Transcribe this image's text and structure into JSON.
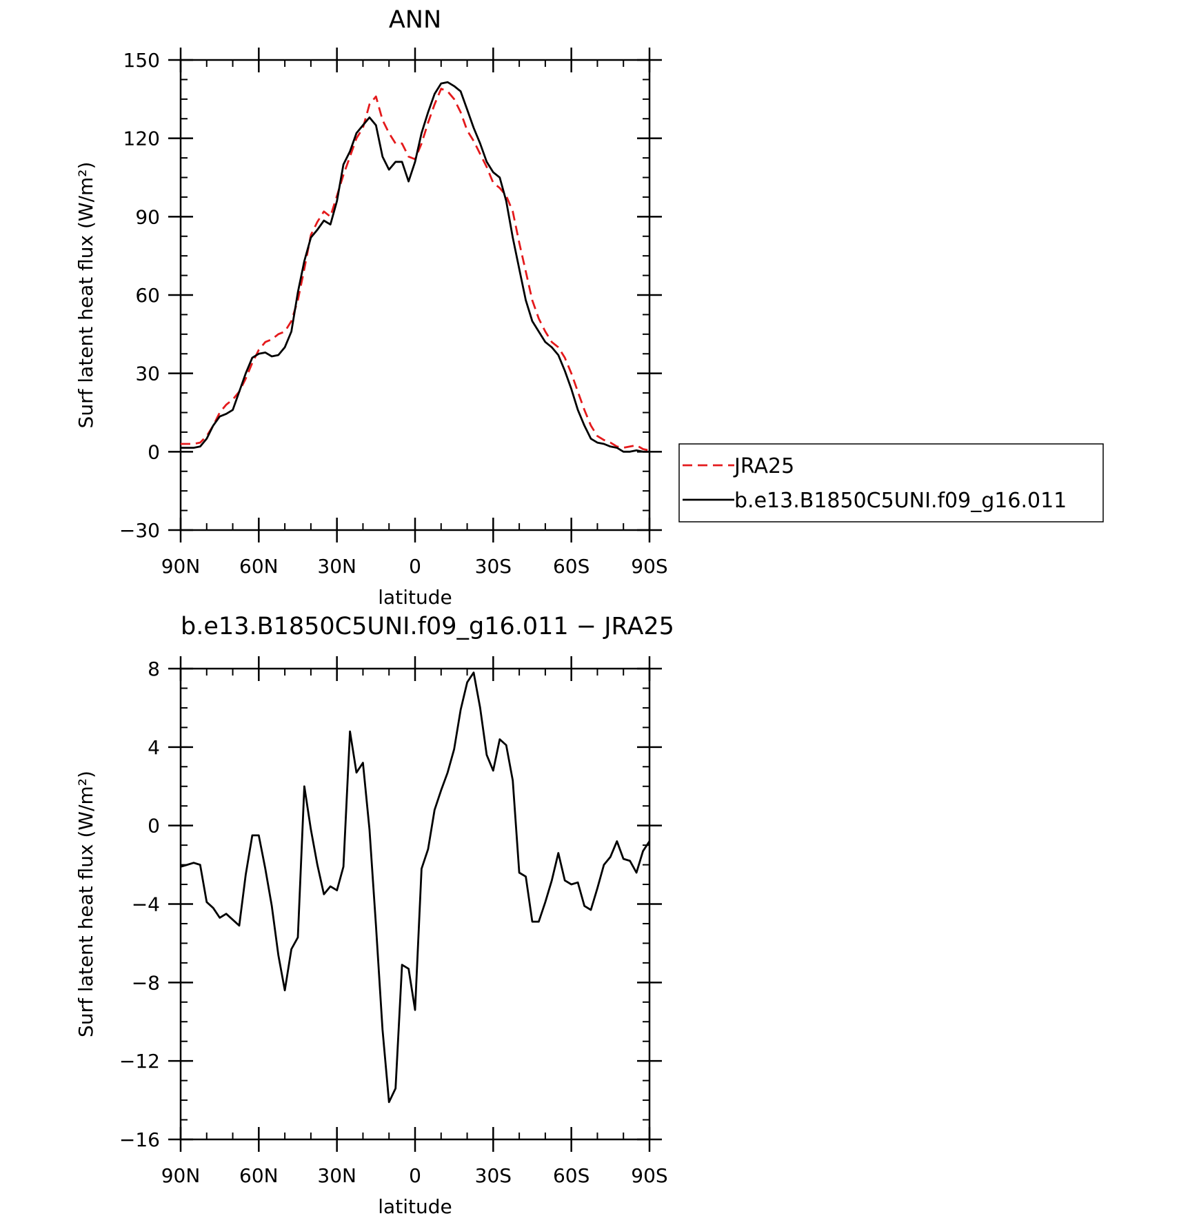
{
  "chart_data": [
    {
      "type": "line",
      "title": "ANN",
      "xlabel": "latitude",
      "ylabel": "Surf latent heat flux (W/m²)",
      "xlim": [
        -90,
        90
      ],
      "ylim": [
        -30,
        150
      ],
      "xtick_values": [
        -90,
        -60,
        -30,
        0,
        30,
        60,
        90
      ],
      "xtick_labels": [
        "90N",
        "60N",
        "30N",
        "0",
        "30S",
        "60S",
        "90S"
      ],
      "ytick_values": [
        -30,
        0,
        30,
        60,
        90,
        120,
        150
      ],
      "ytick_labels": [
        "−30",
        "0",
        "30",
        "60",
        "90",
        "120",
        "150"
      ],
      "legend_position": "right",
      "series": [
        {
          "name": "JRA25",
          "color": "#e41a1c",
          "dash": "dashed",
          "x": [
            -90,
            -87.5,
            -85,
            -82.5,
            -80,
            -77.5,
            -75,
            -72.5,
            -70,
            -67.5,
            -65,
            -62.5,
            -60,
            -57.5,
            -55,
            -52.5,
            -50,
            -47.5,
            -45,
            -42.5,
            -40,
            -37.5,
            -35,
            -32.5,
            -30,
            -27.5,
            -25,
            -22.5,
            -20,
            -17.5,
            -15,
            -12.5,
            -10,
            -7.5,
            -5,
            -2.5,
            0,
            2.5,
            5,
            7.5,
            10,
            12.5,
            15,
            17.5,
            20,
            22.5,
            25,
            27.5,
            30,
            32.5,
            35,
            37.5,
            40,
            42.5,
            45,
            47.5,
            50,
            52.5,
            55,
            57.5,
            60,
            62.5,
            65,
            67.5,
            70,
            72.5,
            75,
            77.5,
            80,
            82.5,
            85,
            87.5,
            90
          ],
          "y": [
            3,
            3,
            3,
            3.5,
            6,
            10,
            15,
            18,
            20,
            23,
            28,
            34,
            39,
            42,
            43,
            45,
            46,
            50,
            58,
            70,
            83,
            88,
            92,
            90,
            98,
            106,
            113,
            120,
            124,
            133,
            136,
            127,
            122,
            118,
            118,
            113,
            112,
            118,
            126,
            133,
            139,
            138,
            135,
            130,
            123,
            119,
            114,
            109,
            103,
            101,
            98,
            92,
            80,
            69,
            58,
            51,
            46,
            42,
            40,
            36,
            30,
            23,
            16,
            10,
            6,
            4.5,
            3.5,
            2,
            1.5,
            2,
            2.5,
            1,
            0.5
          ]
        },
        {
          "name": "b.e13.B1850C5UNI.f09_g16.011",
          "color": "#000000",
          "dash": "solid",
          "x": [
            -90,
            -87.5,
            -85,
            -82.5,
            -80,
            -77.5,
            -75,
            -72.5,
            -70,
            -67.5,
            -65,
            -62.5,
            -60,
            -57.5,
            -55,
            -52.5,
            -50,
            -47.5,
            -45,
            -42.5,
            -40,
            -37.5,
            -35,
            -32.5,
            -30,
            -27.5,
            -25,
            -22.5,
            -20,
            -17.5,
            -15,
            -12.5,
            -10,
            -7.5,
            -5,
            -2.5,
            0,
            2.5,
            5,
            7.5,
            10,
            12.5,
            15,
            17.5,
            20,
            22.5,
            25,
            27.5,
            30,
            32.5,
            35,
            37.5,
            40,
            42.5,
            45,
            47.5,
            50,
            52.5,
            55,
            57.5,
            60,
            62.5,
            65,
            67.5,
            70,
            72.5,
            75,
            77.5,
            80,
            82.5,
            85,
            87.5,
            90
          ],
          "y": [
            1.5,
            1.5,
            1.5,
            2,
            5,
            10,
            13.5,
            14.5,
            16,
            23,
            30,
            36,
            37.5,
            38,
            36.5,
            37,
            40,
            46,
            61,
            73,
            82,
            85,
            88.5,
            87,
            96,
            110,
            115,
            122,
            125,
            128,
            125,
            113,
            108,
            111,
            111,
            103.5,
            111,
            122,
            130,
            137,
            141,
            141.5,
            140,
            138,
            131,
            124,
            118,
            111,
            107,
            105,
            96,
            82,
            70,
            58,
            50,
            46,
            42,
            40,
            37,
            31,
            24,
            16,
            10,
            5,
            3.5,
            3,
            2,
            1.5,
            0,
            0,
            0.5,
            0,
            0
          ]
        }
      ]
    },
    {
      "type": "line",
      "title": "b.e13.B1850C5UNI.f09_g16.011 − JRA25",
      "xlabel": "latitude",
      "ylabel": "Surf latent heat flux (W/m²)",
      "xlim": [
        -90,
        90
      ],
      "ylim": [
        -16,
        8
      ],
      "xtick_values": [
        -90,
        -60,
        -30,
        0,
        30,
        60,
        90
      ],
      "xtick_labels": [
        "90N",
        "60N",
        "30N",
        "0",
        "30S",
        "60S",
        "90S"
      ],
      "ytick_values": [
        -16,
        -12,
        -8,
        -4,
        0,
        4,
        8
      ],
      "ytick_labels": [
        "−16",
        "−12",
        "−8",
        "−4",
        "0",
        "4",
        "8"
      ],
      "series": [
        {
          "color": "#000000",
          "dash": "solid",
          "x": [
            -90,
            -87.5,
            -85,
            -82.5,
            -80,
            -77.5,
            -75,
            -72.5,
            -70,
            -67.5,
            -65,
            -62.5,
            -60,
            -57.5,
            -55,
            -52.5,
            -50,
            -47.5,
            -45,
            -42.5,
            -40,
            -37.5,
            -35,
            -32.5,
            -30,
            -27.5,
            -25,
            -22.5,
            -20,
            -17.5,
            -15,
            -12.5,
            -10,
            -7.5,
            -5,
            -2.5,
            0,
            2.5,
            5,
            7.5,
            10,
            12.5,
            15,
            17.5,
            20,
            22.5,
            25,
            27.5,
            30,
            32.5,
            35,
            37.5,
            40,
            42.5,
            45,
            47.5,
            50,
            52.5,
            55,
            57.5,
            60,
            62.5,
            65,
            67.5,
            70,
            72.5,
            75,
            77.5,
            80,
            82.5,
            85,
            87.5,
            90
          ],
          "y": [
            -2.1,
            -2,
            -1.9,
            -2,
            -3.9,
            -4.2,
            -4.7,
            -4.5,
            -4.8,
            -5.1,
            -2.5,
            -0.5,
            -0.5,
            -2.2,
            -4.1,
            -6.6,
            -8.4,
            -6.3,
            -5.7,
            2,
            -0.2,
            -2,
            -3.5,
            -3.1,
            -3.3,
            -2.1,
            4.8,
            2.7,
            3.2,
            -0.2,
            -5.1,
            -10.4,
            -14.1,
            -13.4,
            -7.1,
            -7.3,
            -9.4,
            -2.2,
            -1.2,
            0.8,
            1.8,
            2.7,
            3.9,
            5.9,
            7.3,
            7.8,
            6,
            3.6,
            2.8,
            4.4,
            4.1,
            2.3,
            -2.4,
            -2.6,
            -4.9,
            -4.9,
            -3.9,
            -2.8,
            -1.4,
            -2.8,
            -3,
            -2.9,
            -4.1,
            -4.3,
            -3.2,
            -2,
            -1.6,
            -0.8,
            -1.7,
            -1.8,
            -2.4,
            -1.3,
            -0.8
          ]
        }
      ]
    }
  ]
}
